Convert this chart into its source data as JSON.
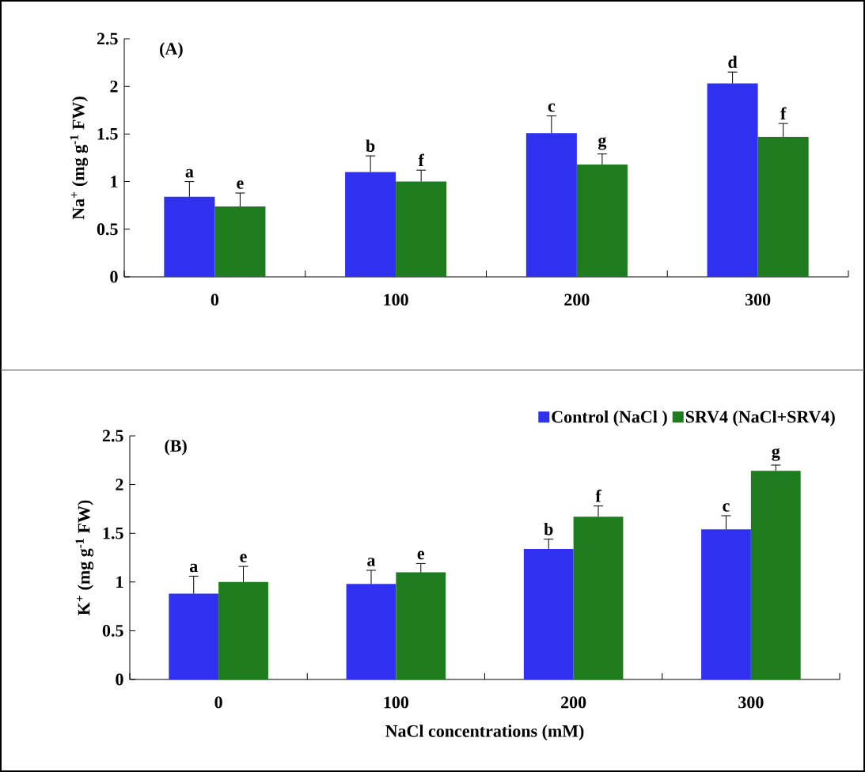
{
  "chart_data": [
    {
      "type": "bar",
      "title": "(A)",
      "ylabel": "Na$^{+}$ (mg g$^{-1}$ FW)",
      "categories": [
        "0",
        "100",
        "200",
        "300"
      ],
      "ylim": [
        0,
        2.5
      ],
      "yticks": [
        0,
        0.5,
        1,
        1.5,
        2,
        2.5
      ],
      "series": [
        {
          "color": "#3030f0",
          "values": [
            0.84,
            1.1,
            1.51,
            2.03
          ],
          "errors": [
            [
              0.84,
              1.0
            ],
            [
              1.1,
              1.27
            ],
            [
              1.51,
              1.69
            ],
            [
              2.03,
              2.15
            ]
          ],
          "value_labels": [
            "a",
            "b",
            "c",
            "d"
          ]
        },
        {
          "color": "#1e7b1e",
          "values": [
            0.74,
            1.0,
            1.18,
            1.47
          ],
          "errors": [
            [
              0.74,
              0.88
            ],
            [
              1.0,
              1.12
            ],
            [
              1.18,
              1.29
            ],
            [
              1.47,
              1.61
            ]
          ],
          "value_labels": [
            "e",
            "f",
            "g",
            "f"
          ]
        }
      ]
    },
    {
      "type": "bar",
      "title": "(B)",
      "xlabel": "NaCl concentrations (mM)",
      "ylabel": "K$^{+}$ (mg g$^{-1}$ FW)",
      "categories": [
        "0",
        "100",
        "200",
        "300"
      ],
      "ylim": [
        0,
        2.5
      ],
      "yticks": [
        0,
        0.5,
        1,
        1.5,
        2,
        2.5
      ],
      "legend": "top right",
      "series": [
        {
          "name": "Control (NaCl )",
          "color": "#3030f0",
          "values": [
            0.88,
            0.98,
            1.34,
            1.54
          ],
          "errors": [
            [
              0.88,
              1.06
            ],
            [
              0.98,
              1.12
            ],
            [
              1.34,
              1.44
            ],
            [
              1.54,
              1.68
            ]
          ],
          "value_labels": [
            "a",
            "a",
            "b",
            "c"
          ]
        },
        {
          "name": "SRV4 (NaCl+SRV4)",
          "color": "#1e7b1e",
          "values": [
            1.0,
            1.1,
            1.67,
            2.14
          ],
          "errors": [
            [
              1.0,
              1.16
            ],
            [
              1.1,
              1.19
            ],
            [
              1.67,
              1.78
            ],
            [
              2.14,
              2.2
            ]
          ],
          "value_labels": [
            "e",
            "e",
            "f",
            "g"
          ]
        }
      ]
    }
  ]
}
